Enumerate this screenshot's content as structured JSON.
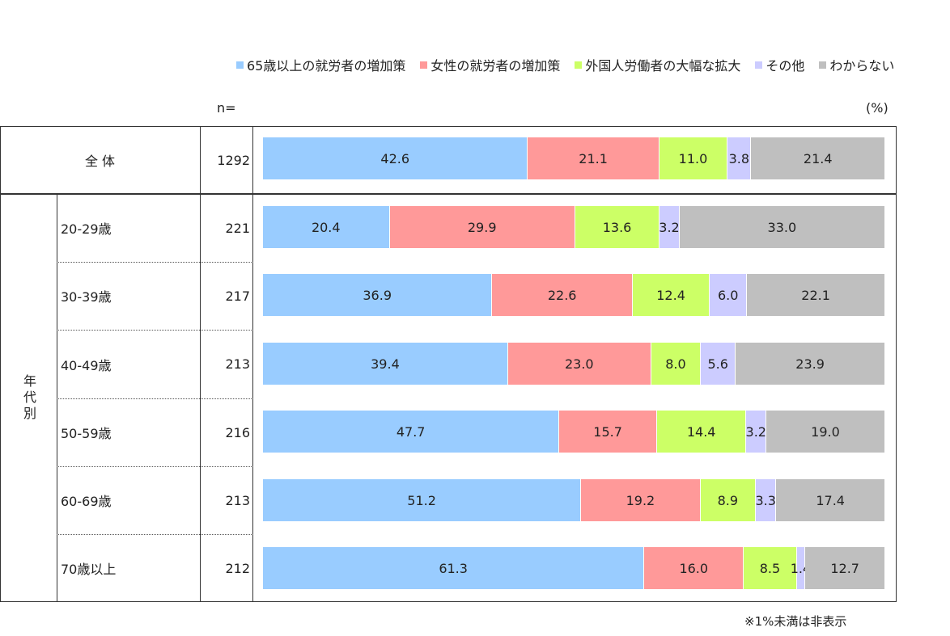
{
  "legend": [
    {
      "label": "65歳以上の就労者の増加策",
      "color": "#99ccff"
    },
    {
      "label": "女性の就労者の増加策",
      "color": "#ff9999"
    },
    {
      "label": "外国人労働者の大幅な拡大",
      "color": "#ccff66"
    },
    {
      "label": "その他",
      "color": "#ccccff"
    },
    {
      "label": "わからない",
      "color": "#bfbfbf"
    }
  ],
  "n_header": "n=",
  "unit": "(%)",
  "note": "※1%未満は非表示",
  "group_label": "年代別",
  "chart_data": {
    "type": "bar",
    "orientation": "horizontal-stacked-100",
    "categories": [
      "全 体",
      "20-29歳",
      "30-39歳",
      "40-49歳",
      "50-59歳",
      "60-69歳",
      "70歳以上"
    ],
    "n": [
      "1292",
      "221",
      "217",
      "213",
      "216",
      "213",
      "212"
    ],
    "series": [
      {
        "name": "65歳以上の就労者の増加策",
        "color": "#99ccff",
        "values": [
          42.6,
          20.4,
          36.9,
          39.4,
          47.7,
          51.2,
          61.3
        ]
      },
      {
        "name": "女性の就労者の増加策",
        "color": "#ff9999",
        "values": [
          21.1,
          29.9,
          22.6,
          23.0,
          15.7,
          19.2,
          16.0
        ]
      },
      {
        "name": "外国人労働者の大幅な拡大",
        "color": "#ccff66",
        "values": [
          11.0,
          13.6,
          12.4,
          8.0,
          14.4,
          8.9,
          8.5
        ]
      },
      {
        "name": "その他",
        "color": "#ccccff",
        "values": [
          3.8,
          3.2,
          6.0,
          5.6,
          3.2,
          3.3,
          1.4
        ]
      },
      {
        "name": "わからない",
        "color": "#bfbfbf",
        "values": [
          21.4,
          33.0,
          22.1,
          23.9,
          19.0,
          17.4,
          12.7
        ]
      }
    ],
    "labels": [
      [
        "42.6",
        "21.1",
        "11.0",
        "3.8",
        "21.4"
      ],
      [
        "20.4",
        "29.9",
        "13.6",
        "3.2",
        "33.0"
      ],
      [
        "36.9",
        "22.6",
        "12.4",
        "6.0",
        "22.1"
      ],
      [
        "39.4",
        "23.0",
        "8.0",
        "5.6",
        "23.9"
      ],
      [
        "47.7",
        "15.7",
        "14.4",
        "3.2",
        "19.0"
      ],
      [
        "51.2",
        "19.2",
        "8.9",
        "3.3",
        "17.4"
      ],
      [
        "61.3",
        "16.0",
        "8.5",
        "1.4",
        "12.7"
      ]
    ],
    "xlim": [
      0,
      100
    ],
    "grid": false,
    "legend_position": "top"
  }
}
